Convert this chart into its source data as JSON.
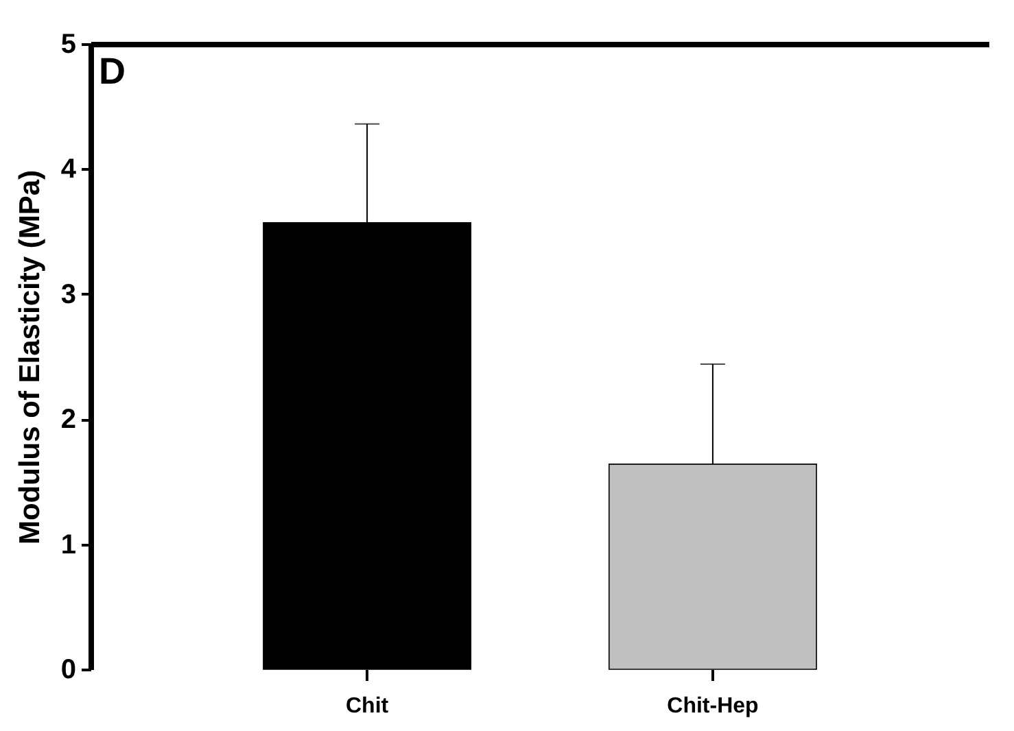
{
  "chart_data": {
    "type": "bar",
    "ylabel": "Modulus of Elasticity (MPa)",
    "annotations": [
      "D"
    ],
    "categories": [
      "Chit",
      "Chit-Hep"
    ],
    "series": [
      {
        "color": "#000000",
        "values": [
          3.57,
          null
        ],
        "errors": [
          [
            3.57,
            4.36
          ],
          null
        ]
      },
      {
        "color": "#c0c0c0",
        "values": [
          null,
          1.64
        ],
        "errors": [
          null,
          [
            1.64,
            2.44
          ]
        ]
      }
    ],
    "ylim": [
      0,
      5
    ],
    "yticks": [
      0,
      1,
      2,
      3,
      4,
      5
    ],
    "grid": false,
    "legend": false
  }
}
